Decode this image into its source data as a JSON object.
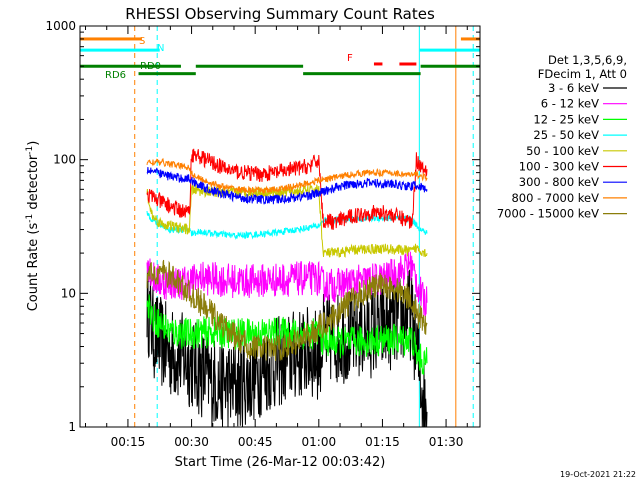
{
  "chart_data": {
    "type": "line",
    "title": "RHESSI Observing Summary Count Rates",
    "xlabel": "Start Time (26-Mar-12 00:03:42)",
    "ylabel_prefix": "Count Rate (s",
    "ylabel_exp1": "-1",
    "ylabel_mid": " detector",
    "ylabel_exp2": "-1",
    "ylabel_suffix": ")",
    "yscale": "log",
    "ylim": [
      1,
      1000
    ],
    "xlim": [
      3.7,
      98
    ],
    "x_unit": "minutes after 00:00 UT",
    "xticks": [
      {
        "value": 15,
        "label": "00:15"
      },
      {
        "value": 30,
        "label": "00:30"
      },
      {
        "value": 45,
        "label": "00:45"
      },
      {
        "value": 60,
        "label": "01:00"
      },
      {
        "value": 75,
        "label": "01:15"
      },
      {
        "value": 90,
        "label": "01:30"
      }
    ],
    "yticks": [
      {
        "value": 1,
        "label": "1"
      },
      {
        "value": 10,
        "label": "10"
      },
      {
        "value": 100,
        "label": "100"
      },
      {
        "value": 1000,
        "label": "1000"
      }
    ],
    "legend_header": [
      "Det 1,3,5,6,9,",
      "FDecim 1, Att 0"
    ],
    "legend_position": "right",
    "series": [
      {
        "name": "3 - 6 keV",
        "color": "#000000",
        "points": [
          [
            19.5,
            9
          ],
          [
            20,
            7
          ],
          [
            21,
            5
          ],
          [
            23,
            4.2
          ],
          [
            25,
            3.6
          ],
          [
            28,
            3.3
          ],
          [
            30,
            3
          ],
          [
            32,
            2.6
          ],
          [
            35,
            2.2
          ],
          [
            38,
            2.1
          ],
          [
            40,
            2.0
          ],
          [
            43,
            2.2
          ],
          [
            46,
            2.6
          ],
          [
            50,
            3.0
          ],
          [
            54,
            3.4
          ],
          [
            57,
            3.6
          ],
          [
            60,
            3.5
          ],
          [
            61,
            4.5
          ],
          [
            64,
            4.6
          ],
          [
            68,
            4.8
          ],
          [
            72,
            5.1
          ],
          [
            76,
            5.6
          ],
          [
            78,
            6.1
          ],
          [
            80,
            6.6
          ],
          [
            81.5,
            7.2
          ],
          [
            82.5,
            5
          ],
          [
            83.5,
            3
          ],
          [
            84.5,
            1.7
          ],
          [
            85.5,
            1.3
          ]
        ]
      },
      {
        "name": "6 - 12 keV",
        "color": "#ff00ff",
        "points": [
          [
            19.5,
            20
          ],
          [
            20,
            16
          ],
          [
            21,
            13
          ],
          [
            23,
            12
          ],
          [
            25,
            12
          ],
          [
            28,
            12
          ],
          [
            30,
            12.5
          ],
          [
            31,
            12.8
          ],
          [
            33,
            13
          ],
          [
            38,
            12.5
          ],
          [
            43,
            12.3
          ],
          [
            48,
            12.5
          ],
          [
            54,
            12.8
          ],
          [
            60,
            13
          ],
          [
            61,
            11.5
          ],
          [
            64,
            11.5
          ],
          [
            68,
            12
          ],
          [
            72,
            12.5
          ],
          [
            76,
            13
          ],
          [
            78,
            14
          ],
          [
            80,
            15
          ],
          [
            81.5,
            17
          ],
          [
            82.5,
            14
          ],
          [
            83.5,
            11
          ],
          [
            84.5,
            9
          ],
          [
            85.5,
            8.5
          ]
        ]
      },
      {
        "name": "12 - 25 keV",
        "color": "#00ff00",
        "points": [
          [
            19.5,
            10
          ],
          [
            20,
            8
          ],
          [
            21,
            6.5
          ],
          [
            23,
            5.8
          ],
          [
            25,
            5.2
          ],
          [
            28,
            5
          ],
          [
            30,
            5
          ],
          [
            32,
            5.1
          ],
          [
            36,
            5.1
          ],
          [
            40,
            5
          ],
          [
            45,
            5
          ],
          [
            50,
            5.1
          ],
          [
            55,
            5
          ],
          [
            60,
            5
          ],
          [
            61,
            4.4
          ],
          [
            64,
            4.3
          ],
          [
            68,
            4.3
          ],
          [
            72,
            4.4
          ],
          [
            76,
            4.5
          ],
          [
            80,
            4.5
          ],
          [
            82,
            4.6
          ],
          [
            83,
            3.5
          ],
          [
            84.5,
            3.1
          ],
          [
            85.5,
            3
          ]
        ]
      },
      {
        "name": "25 - 50 keV",
        "color": "#00ffff",
        "points": [
          [
            19.5,
            40
          ],
          [
            21,
            35
          ],
          [
            23,
            32
          ],
          [
            25,
            30
          ],
          [
            27,
            30
          ],
          [
            29.5,
            30
          ],
          [
            30,
            28
          ],
          [
            32,
            29
          ],
          [
            35,
            28
          ],
          [
            38,
            27.5
          ],
          [
            40,
            27
          ],
          [
            45,
            27.5
          ],
          [
            50,
            28.5
          ],
          [
            55,
            30
          ],
          [
            60,
            32
          ],
          [
            61,
            35
          ],
          [
            64,
            35.5
          ],
          [
            68,
            36
          ],
          [
            72,
            36.5
          ],
          [
            76,
            36.5
          ],
          [
            80,
            36
          ],
          [
            82,
            35.5
          ],
          [
            84,
            30
          ],
          [
            85.5,
            28
          ]
        ]
      },
      {
        "name": "50 - 100 keV",
        "color": "#c8c800",
        "points": [
          [
            19.5,
            60
          ],
          [
            20,
            45
          ],
          [
            21,
            37
          ],
          [
            23,
            33
          ],
          [
            25,
            32
          ],
          [
            27,
            31
          ],
          [
            29.5,
            30
          ],
          [
            30,
            60
          ],
          [
            33,
            58
          ],
          [
            36,
            57
          ],
          [
            40,
            57
          ],
          [
            45,
            57
          ],
          [
            50,
            57
          ],
          [
            55,
            58
          ],
          [
            58,
            59
          ],
          [
            60,
            60
          ],
          [
            61,
            20
          ],
          [
            64,
            20
          ],
          [
            68,
            21
          ],
          [
            72,
            21.5
          ],
          [
            76,
            21.5
          ],
          [
            80,
            21
          ],
          [
            82,
            20.5
          ],
          [
            83,
            22
          ],
          [
            84,
            21
          ],
          [
            85.5,
            20
          ]
        ]
      },
      {
        "name": "100 - 300 keV",
        "color": "#ff0000",
        "points": [
          [
            19.5,
            55
          ],
          [
            21,
            52
          ],
          [
            23,
            48
          ],
          [
            25,
            45
          ],
          [
            27,
            42
          ],
          [
            29.5,
            40
          ],
          [
            30,
            110
          ],
          [
            32,
            105
          ],
          [
            35,
            95
          ],
          [
            38,
            85
          ],
          [
            42,
            80
          ],
          [
            46,
            78
          ],
          [
            50,
            80
          ],
          [
            54,
            85
          ],
          [
            58,
            90
          ],
          [
            60,
            100
          ],
          [
            61,
            35
          ],
          [
            64,
            34
          ],
          [
            68,
            38
          ],
          [
            72,
            40
          ],
          [
            76,
            40
          ],
          [
            80,
            36
          ],
          [
            82,
            34
          ],
          [
            83,
            100
          ],
          [
            84,
            90
          ],
          [
            85.5,
            85
          ]
        ]
      },
      {
        "name": "300 - 800 keV",
        "color": "#0000ff",
        "points": [
          [
            19.5,
            85
          ],
          [
            21,
            82
          ],
          [
            23,
            78
          ],
          [
            25,
            75
          ],
          [
            27,
            73
          ],
          [
            29.5,
            72
          ],
          [
            30,
            70
          ],
          [
            33,
            62
          ],
          [
            36,
            57
          ],
          [
            40,
            53
          ],
          [
            44,
            51
          ],
          [
            48,
            50
          ],
          [
            52,
            51
          ],
          [
            56,
            53
          ],
          [
            60,
            56
          ],
          [
            64,
            62
          ],
          [
            68,
            66
          ],
          [
            72,
            67
          ],
          [
            76,
            66
          ],
          [
            80,
            64
          ],
          [
            82,
            63
          ],
          [
            83,
            65
          ],
          [
            84,
            62
          ],
          [
            85.5,
            60
          ]
        ]
      },
      {
        "name": "800 - 7000 keV",
        "color": "#ff8000",
        "points": [
          [
            19.5,
            95
          ],
          [
            21,
            96
          ],
          [
            23,
            95
          ],
          [
            25,
            93
          ],
          [
            27,
            90
          ],
          [
            29.5,
            88
          ],
          [
            30,
            78
          ],
          [
            32,
            72
          ],
          [
            35,
            66
          ],
          [
            38,
            62
          ],
          [
            41,
            60
          ],
          [
            44,
            59
          ],
          [
            48,
            59
          ],
          [
            52,
            61
          ],
          [
            56,
            65
          ],
          [
            60,
            70
          ],
          [
            64,
            74
          ],
          [
            68,
            78
          ],
          [
            72,
            80
          ],
          [
            76,
            80
          ],
          [
            80,
            78
          ],
          [
            82,
            76
          ],
          [
            83,
            78
          ],
          [
            84,
            75
          ],
          [
            85.5,
            73
          ]
        ]
      },
      {
        "name": "7000 - 15000 keV",
        "color": "#8b7d0a",
        "points": [
          [
            19.5,
            13
          ],
          [
            21,
            14
          ],
          [
            23,
            14.5
          ],
          [
            25,
            13.5
          ],
          [
            27,
            12
          ],
          [
            29.5,
            10
          ],
          [
            32,
            8.5
          ],
          [
            35,
            7
          ],
          [
            38,
            5.5
          ],
          [
            41,
            4.5
          ],
          [
            44,
            4
          ],
          [
            48,
            3.8
          ],
          [
            52,
            4
          ],
          [
            56,
            4.5
          ],
          [
            60,
            5.5
          ],
          [
            64,
            7
          ],
          [
            68,
            9
          ],
          [
            72,
            11
          ],
          [
            76,
            11.5
          ],
          [
            80,
            10
          ],
          [
            82,
            9
          ],
          [
            83,
            7
          ],
          [
            84,
            6.5
          ],
          [
            85.5,
            6
          ]
        ]
      }
    ],
    "state_bars": [
      {
        "name": "S",
        "color": "#ff8000",
        "x_ranges": [
          [
            3.7,
            18.3
          ],
          [
            93.5,
            98
          ]
        ],
        "level": 800
      },
      {
        "name": "N",
        "color": "#00ffff",
        "x_ranges": [
          [
            3.7,
            22.5
          ],
          [
            83.8,
            98
          ]
        ],
        "level": 660
      },
      {
        "name": "RD0",
        "color": "#008000",
        "x_ranges": [
          [
            3.7,
            27.5
          ],
          [
            31,
            56.3
          ],
          [
            84,
            98
          ]
        ],
        "level": 500
      },
      {
        "name": "RD6",
        "color": "#008000",
        "x_ranges": [
          [
            17.5,
            31
          ],
          [
            56.3,
            84
          ]
        ],
        "level": 440
      },
      {
        "name": "F",
        "color": "#ff0000",
        "x_ranges": [
          [
            73,
            75
          ],
          [
            79,
            83
          ]
        ],
        "level": 520
      }
    ],
    "vertical_lines": [
      {
        "x": 16.6,
        "color": "#ff8000",
        "style": "dashed"
      },
      {
        "x": 21.9,
        "color": "#00ffff",
        "style": "dashed"
      },
      {
        "x": 83.7,
        "color": "#00ffff",
        "style": "solid"
      },
      {
        "x": 92.3,
        "color": "#ff8000",
        "style": "solid"
      },
      {
        "x": 96.4,
        "color": "#00ffff",
        "style": "dashed"
      }
    ],
    "timestamp": "19-Oct-2021 21:22"
  }
}
